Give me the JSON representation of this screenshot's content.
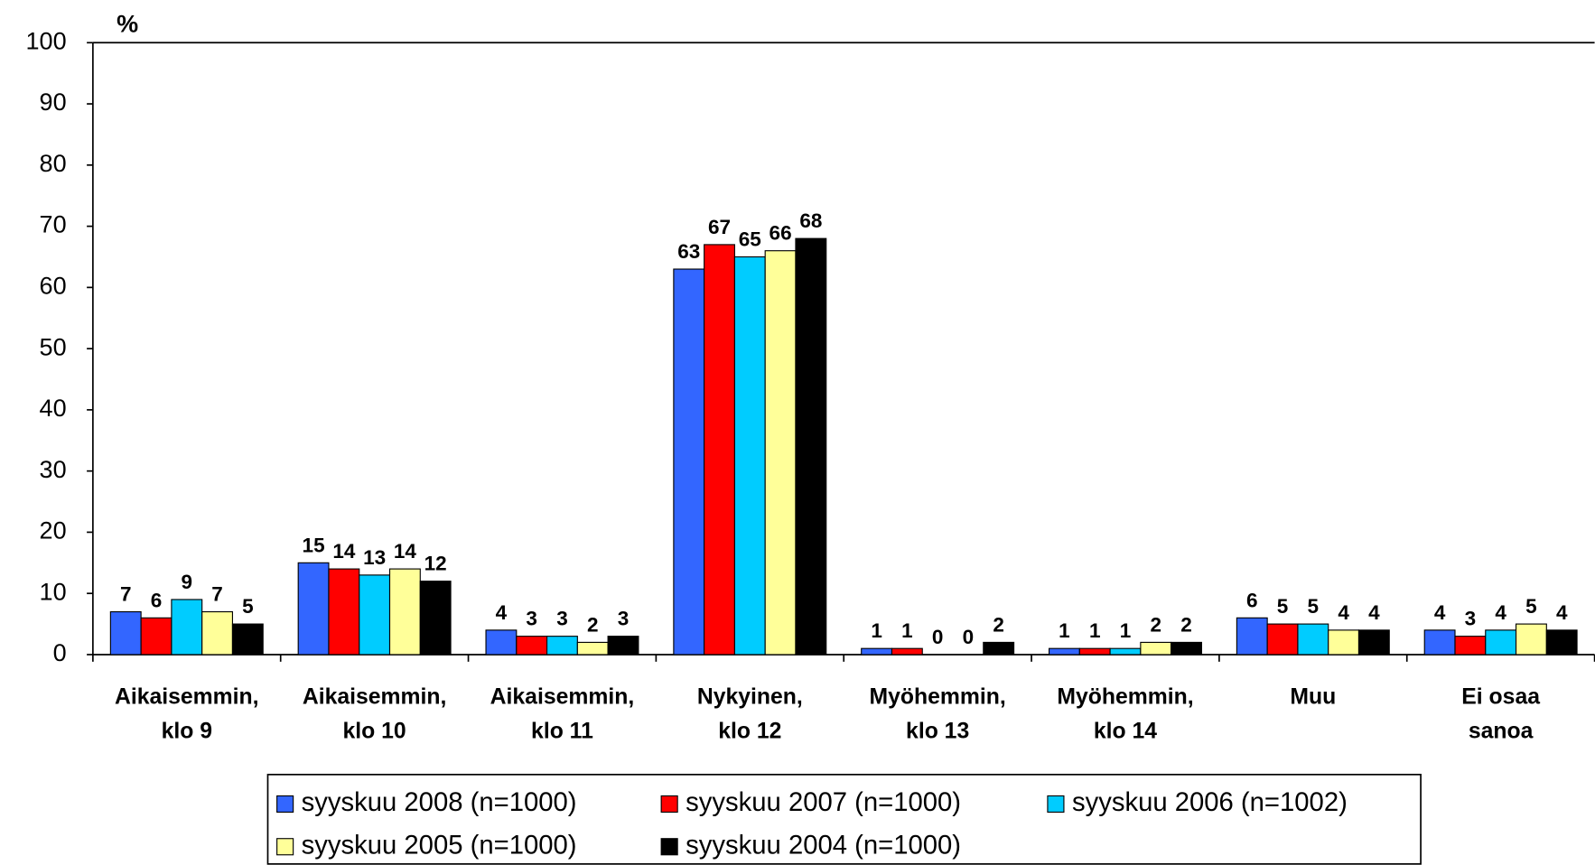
{
  "chart_data": {
    "type": "bar",
    "title": "%",
    "categories": [
      "Aikaisemmin,\nklo 9",
      "Aikaisemmin,\nklo 10",
      "Aikaisemmin,\nklo 11",
      "Nykyinen,\nklo 12",
      "Myöhemmin,\nklo 13",
      "Myöhemmin,\nklo 14",
      "Muu",
      "Ei osaa\nsanoa"
    ],
    "series": [
      {
        "name": "syyskuu 2008 (n=1000)",
        "color": "#3366ff",
        "values": [
          7,
          15,
          4,
          63,
          1,
          1,
          6,
          4
        ]
      },
      {
        "name": "syyskuu 2007 (n=1000)",
        "color": "#ff0000",
        "values": [
          6,
          14,
          3,
          67,
          1,
          1,
          5,
          3
        ]
      },
      {
        "name": "syyskuu 2006 (n=1002)",
        "color": "#00ccff",
        "values": [
          9,
          13,
          3,
          65,
          0,
          1,
          5,
          4
        ]
      },
      {
        "name": "syyskuu 2005 (n=1000)",
        "color": "#ffff99",
        "values": [
          7,
          14,
          2,
          66,
          0,
          2,
          4,
          5
        ]
      },
      {
        "name": "syyskuu 2004 (n=1000)",
        "color": "#000000",
        "values": [
          5,
          12,
          3,
          68,
          2,
          2,
          4,
          4
        ]
      }
    ],
    "ylim": [
      0,
      100
    ],
    "yticks": [
      0,
      10,
      20,
      30,
      40,
      50,
      60,
      70,
      80,
      90,
      100
    ],
    "grid": false,
    "legend": "bottom"
  }
}
